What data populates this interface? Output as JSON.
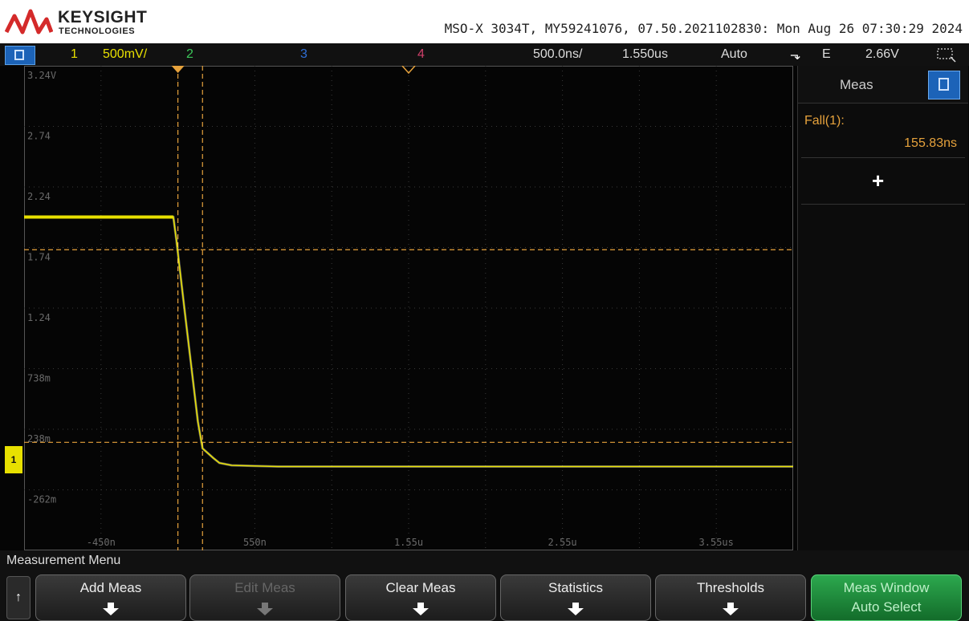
{
  "header": {
    "brand": "KEYSIGHT",
    "brand_sub": "TECHNOLOGIES",
    "instrument_info": "MSO-X 3034T, MY59241076, 07.50.2021102830: Mon Aug 26 07:30:29 2024"
  },
  "statusbar": {
    "ch1_num": "1",
    "ch1_scale": "500mV/",
    "ch2_num": "2",
    "ch3_num": "3",
    "ch4_num": "4",
    "timebase": "500.0ns/",
    "delay": "1.550us",
    "trigger_mode": "Auto",
    "trigger_slope": "⬎",
    "trigger_source": "E",
    "trigger_level": "2.66V"
  },
  "colors": {
    "ch1": "#e8e000",
    "ch2": "#3cc85a",
    "ch3": "#2f6fd6",
    "ch4": "#d0406a",
    "cursor": "#e6a23c"
  },
  "scope": {
    "y_labels": [
      "3.24V",
      "2.74",
      "2.24",
      "1.74",
      "1.24",
      "738m",
      "238m",
      "-262m"
    ],
    "x_labels": [
      "-450n",
      "550n",
      "1.55u",
      "2.55u",
      "3.55us"
    ]
  },
  "chart_data": {
    "type": "line",
    "xlabel": "",
    "ylabel": "",
    "x_unit": "s",
    "y_unit": "V",
    "xlim": [
      -4.5e-07,
      4.55e-06
    ],
    "ylim": [
      -0.512,
      3.488
    ],
    "series": [
      {
        "x": [
          -4.5e-07,
          5.2e-07,
          5.4e-07,
          6e-07,
          6.8e-07,
          7.1e-07,
          7.8e-07,
          8.2e-07,
          9e-07,
          1.2e-06,
          4.55e-06
        ],
        "y": [
          2.24,
          2.24,
          2.05,
          1.4,
          0.55,
          0.33,
          0.25,
          0.21,
          0.19,
          0.18,
          0.18
        ]
      }
    ],
    "cursors": {
      "vertical_x": [
        5.5e-07,
        7.1e-07
      ],
      "horizontal_y": [
        1.97,
        0.38
      ]
    }
  },
  "meas": {
    "title": "Meas",
    "label": "Fall(1):",
    "value": "155.83ns",
    "add": "+"
  },
  "softkeys": {
    "menu_title": "Measurement Menu",
    "back": "↑",
    "add_meas": "Add Meas",
    "edit_meas": "Edit Meas",
    "clear_meas": "Clear Meas",
    "statistics": "Statistics",
    "thresholds": "Thresholds",
    "meas_window": "Meas Window",
    "meas_window_sub": "Auto Select"
  }
}
